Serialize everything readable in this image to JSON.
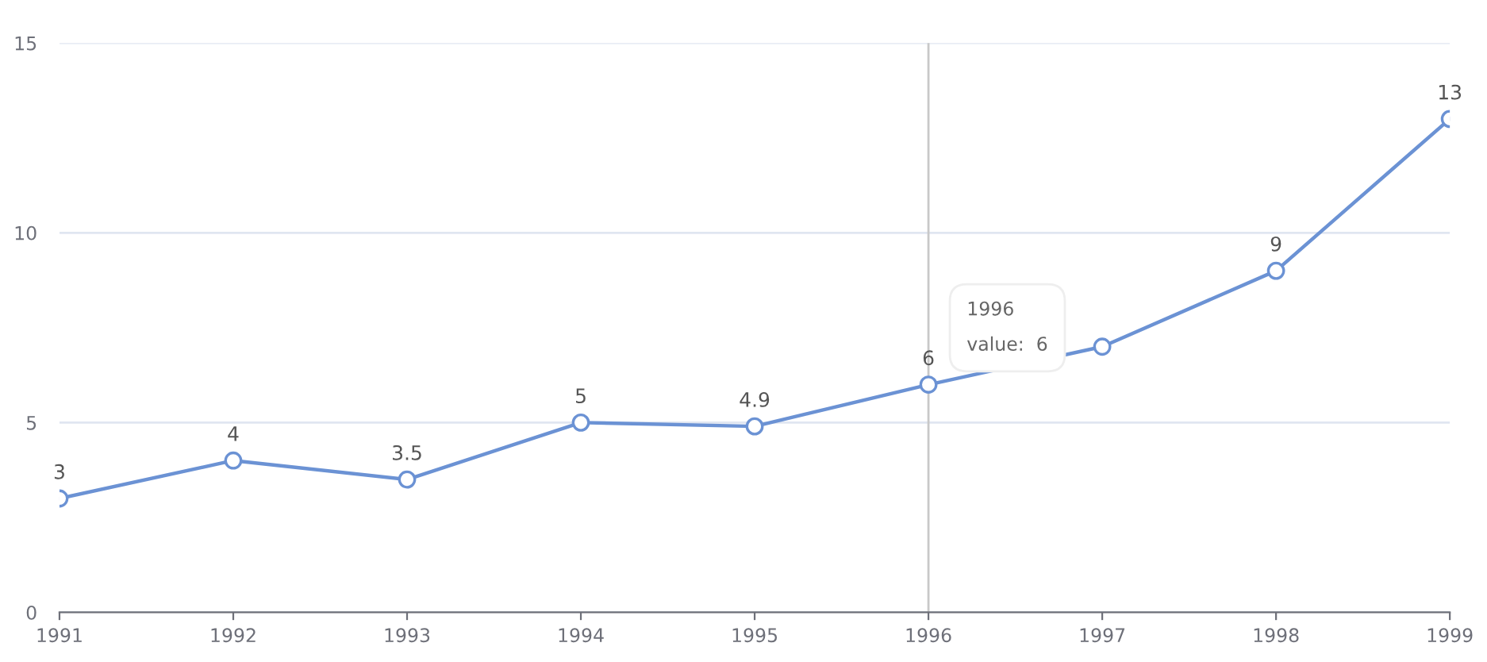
{
  "chart_data": {
    "type": "line",
    "x": [
      1991,
      1992,
      1993,
      1994,
      1995,
      1996,
      1997,
      1998,
      1999
    ],
    "series": [
      {
        "color": "#6b92d4",
        "values": [
          3,
          4,
          3.5,
          5,
          4.9,
          6,
          7,
          9,
          13
        ],
        "value_labels": [
          "3",
          "4",
          "3.5",
          "5",
          "4.9",
          "6",
          null,
          "9",
          "13"
        ]
      }
    ],
    "xlim": [
      1991,
      1999
    ],
    "xticks": [
      1991,
      1992,
      1993,
      1994,
      1995,
      1996,
      1997,
      1998,
      1999
    ],
    "ylim": [
      0,
      15
    ],
    "yticks": [
      0,
      5,
      10,
      15
    ],
    "grid": "y",
    "marker": "circle",
    "line_style": "solid",
    "ref_lines": [
      {
        "axis": "x",
        "value": 1996,
        "label": null,
        "color": "#c8c8c8"
      }
    ],
    "annotations": [
      "1996",
      "value:  6"
    ]
  }
}
